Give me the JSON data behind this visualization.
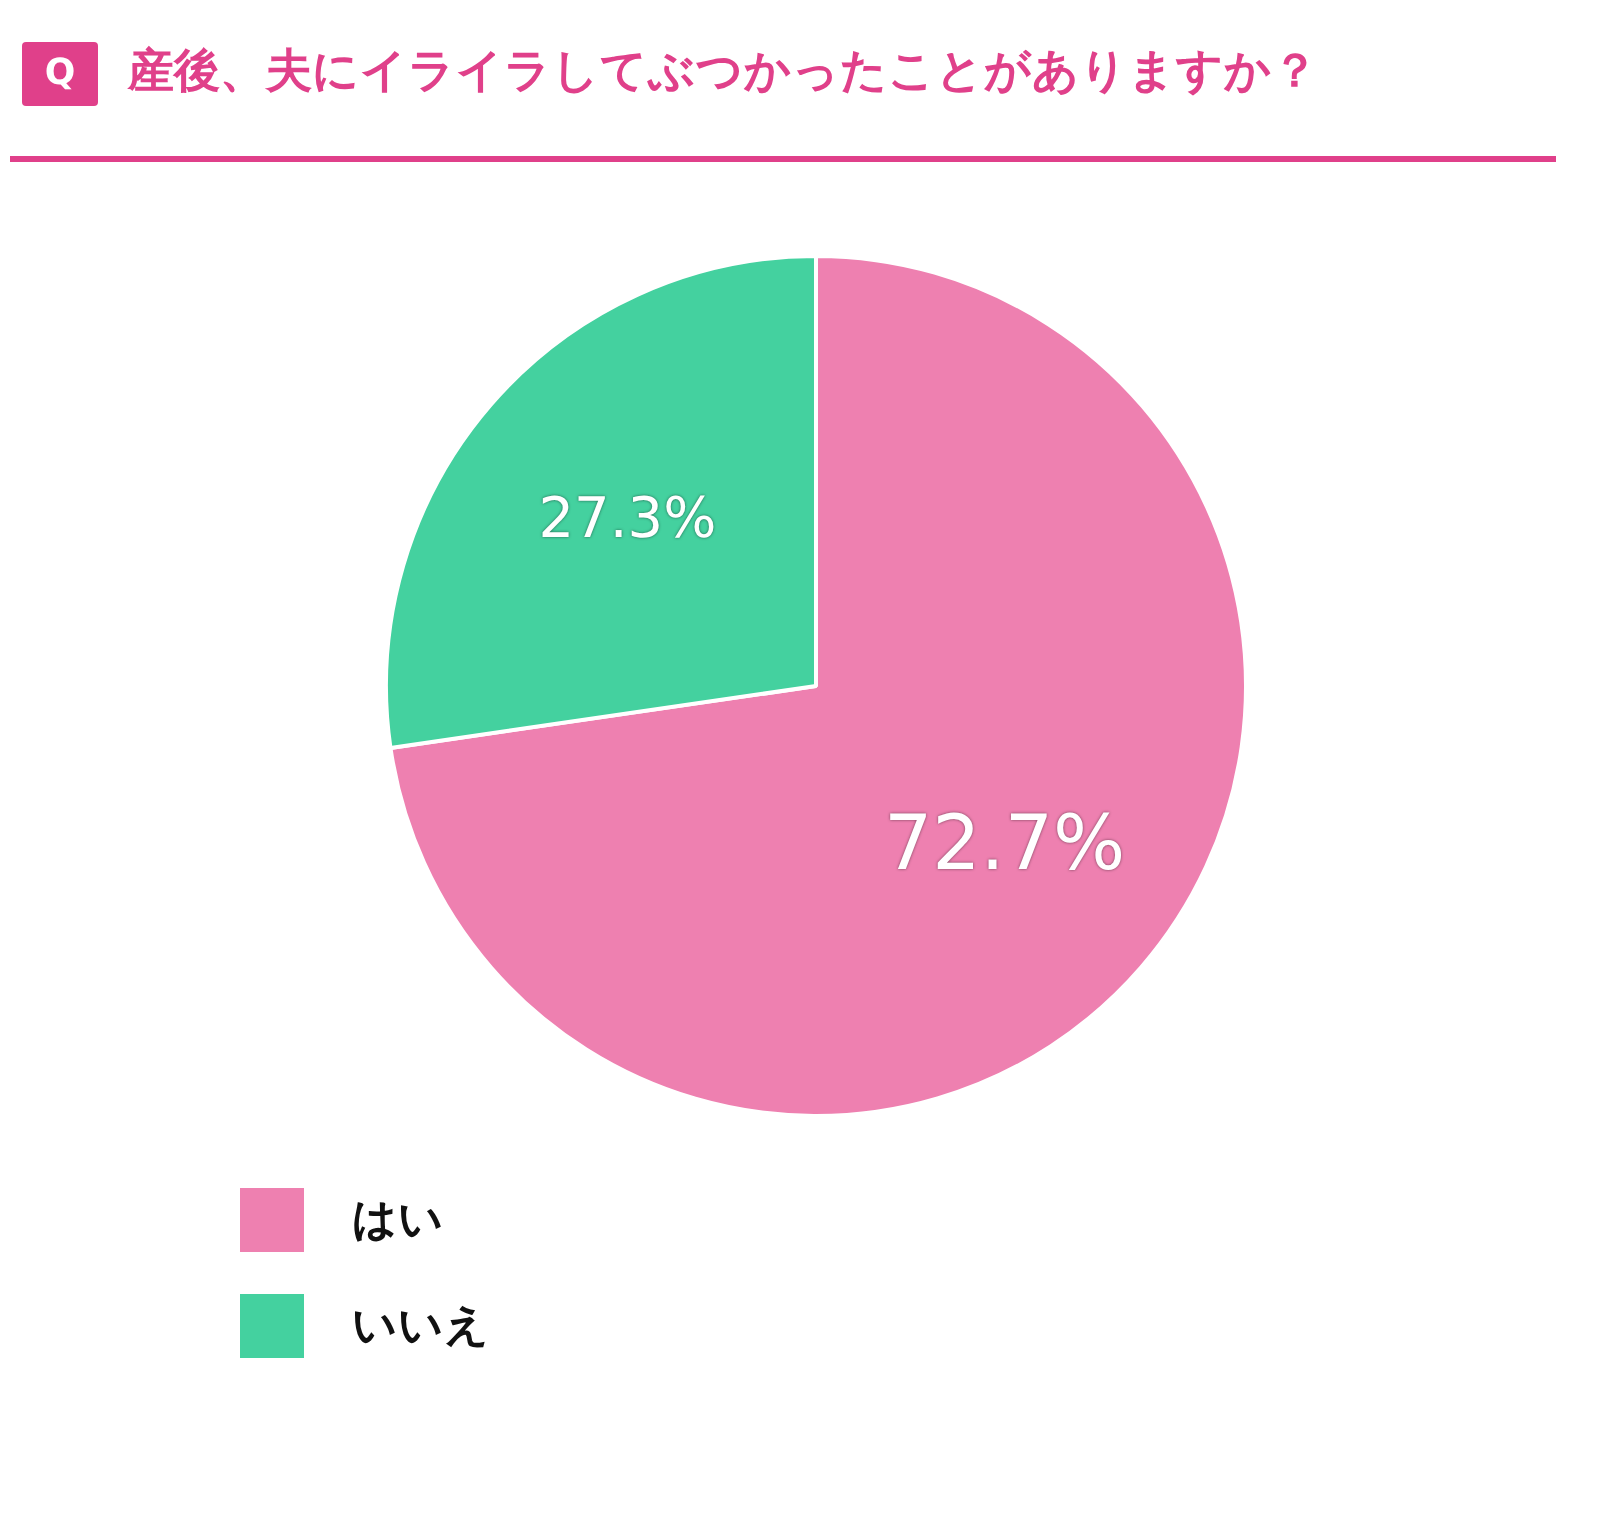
{
  "chart_data": {
    "type": "pie",
    "title": "産後、夫にイライラしてぶつかったことがありますか？",
    "annotations": [
      "Q"
    ],
    "categories": [
      "はい",
      "いいえ"
    ],
    "values": [
      72.7,
      27.3
    ],
    "value_labels": [
      "72.7%",
      "27.3%"
    ],
    "colors": [
      "#ee80b0",
      "#44d19f"
    ],
    "legend": "bottom"
  }
}
